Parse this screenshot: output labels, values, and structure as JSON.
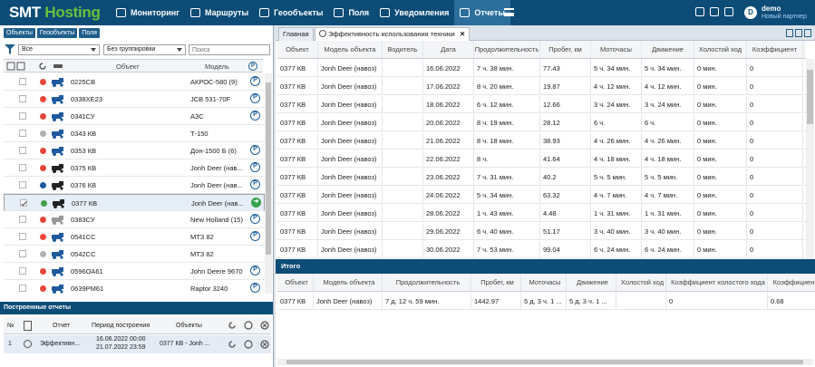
{
  "logo": {
    "part1": "SMT",
    "part2": "Hosting"
  },
  "nav": [
    {
      "label": "Мониторинг",
      "icon": "monitor-icon"
    },
    {
      "label": "Маршруты",
      "icon": "route-icon"
    },
    {
      "label": "Геообъекты",
      "icon": "geo-icon"
    },
    {
      "label": "Поля",
      "icon": "field-icon"
    },
    {
      "label": "Уведомления",
      "icon": "mail-icon"
    },
    {
      "label": "Отчеты",
      "icon": "reports-icon"
    }
  ],
  "user": {
    "initial": "D",
    "name": "demo",
    "role": "Новый партнер"
  },
  "left": {
    "subtabs": [
      "Объекты",
      "Геообъекты",
      "Поля"
    ],
    "filter_all": "Все",
    "grouping": "Без группировки",
    "search_placeholder": "Поиск",
    "col_object": "Объект",
    "col_model": "Модель",
    "rows": [
      {
        "name": "0225СВ",
        "model": "АКРОС-580 (9)",
        "status": "red",
        "icon": "harvester",
        "checked": false,
        "action": "P"
      },
      {
        "name": "0338ХЕ23",
        "model": "JCB 531-70F",
        "status": "red",
        "icon": "loader",
        "checked": false,
        "action": "P"
      },
      {
        "name": "0341СУ",
        "model": "АЗС",
        "status": "red",
        "icon": "fuel",
        "checked": false,
        "action": "P"
      },
      {
        "name": "0343 КВ",
        "model": "Т-150",
        "status": "gray",
        "icon": "tractor",
        "checked": false,
        "action": ""
      },
      {
        "name": "0353 КВ",
        "model": "Дон-1500 Б (6)",
        "status": "red",
        "icon": "harvester",
        "checked": false,
        "action": "P"
      },
      {
        "name": "0375 КВ",
        "model": "Jonh Deer (нав...",
        "status": "red",
        "icon": "car",
        "checked": false,
        "action": "P"
      },
      {
        "name": "0376 КВ",
        "model": "Jonh Deer (нав...",
        "status": "blue",
        "icon": "car",
        "checked": false,
        "action": "P"
      },
      {
        "name": "0377 КВ",
        "model": "Jonh Deer (нав...",
        "status": "green",
        "icon": "car",
        "checked": true,
        "action": "go",
        "selected": true
      },
      {
        "name": "0383СУ",
        "model": "New Holland (15)",
        "status": "red",
        "icon": "truck",
        "checked": false,
        "action": "P"
      },
      {
        "name": "0541СС",
        "model": "МТЗ 82",
        "status": "red",
        "icon": "tractor",
        "checked": false,
        "action": "P"
      },
      {
        "name": "0542СС",
        "model": "МТЗ 82",
        "status": "gray",
        "icon": "tractor",
        "checked": false,
        "action": ""
      },
      {
        "name": "0596ОА61",
        "model": "John Deere 9670",
        "status": "red",
        "icon": "harvester",
        "checked": false,
        "action": "P"
      },
      {
        "name": "0639РМ61",
        "model": "Raptor 3240",
        "status": "red",
        "icon": "harvester",
        "checked": false,
        "action": "P"
      }
    ],
    "reports_title": "Построенные отчеты",
    "rep_cols": {
      "num": "№",
      "report": "Отчет",
      "period": "Период построения",
      "objects": "Объекты"
    },
    "rep_row": {
      "num": "1",
      "report": "Эффективн...",
      "period_from": "16.06.2022 00:00",
      "period_to": "21.07.2022 23:59",
      "objects": "0377 КВ - Jonh ..."
    }
  },
  "right": {
    "tab_home": "Главная",
    "tab_report": "Эффективность использования техники",
    "columns": [
      "Объект",
      "Модель объекта",
      "Водитель",
      "Дата",
      "Продолжительность",
      "Пробег, км",
      "Моточасы",
      "Движение",
      "Холостой ход",
      "Коэффициент"
    ],
    "rows": [
      [
        "0377 КВ",
        "Jonh Deer (навоз)",
        "",
        "16.06.2022",
        "7 ч. 38 мин.",
        "77.43",
        "5 ч. 34 мин.",
        "5 ч. 34 мин.",
        "0 мин.",
        "0"
      ],
      [
        "0377 КВ",
        "Jonh Deer (навоз)",
        "",
        "17.06.2022",
        "8 ч. 20 мин.",
        "19.87",
        "4 ч. 12 мин.",
        "4 ч. 12 мин.",
        "0 мин.",
        "0"
      ],
      [
        "0377 КВ",
        "Jonh Deer (навоз)",
        "",
        "18.06.2022",
        "6 ч. 12 мин.",
        "12.66",
        "3 ч. 24 мин.",
        "3 ч. 24 мин.",
        "0 мин.",
        "0"
      ],
      [
        "0377 КВ",
        "Jonh Deer (навоз)",
        "",
        "20.06.2022",
        "8 ч. 19 мин.",
        "28.12",
        "6 ч.",
        "6 ч.",
        "0 мин.",
        "0"
      ],
      [
        "0377 КВ",
        "Jonh Deer (навоз)",
        "",
        "21.06.2022",
        "8 ч. 18 мин.",
        "38.93",
        "4 ч. 26 мин.",
        "4 ч. 26 мин.",
        "0 мин.",
        "0"
      ],
      [
        "0377 КВ",
        "Jonh Deer (навоз)",
        "",
        "22.06.2022",
        "8 ч.",
        "41.64",
        "4 ч. 18 мин.",
        "4 ч. 18 мин.",
        "0 мин.",
        "0"
      ],
      [
        "0377 КВ",
        "Jonh Deer (навоз)",
        "",
        "23.06.2022",
        "7 ч. 31 мин.",
        "40.2",
        "5 ч. 5 мин.",
        "5 ч. 5 мин.",
        "0 мин.",
        "0"
      ],
      [
        "0377 КВ",
        "Jonh Deer (навоз)",
        "",
        "24.06.2022",
        "5 ч. 34 мин.",
        "63.32",
        "4 ч. 7 мин.",
        "4 ч. 7 мин.",
        "0 мин.",
        "0"
      ],
      [
        "0377 КВ",
        "Jonh Deer (навоз)",
        "",
        "28.06.2022",
        "1 ч. 43 мин.",
        "4.48",
        "1 ч. 31 мин.",
        "1 ч. 31 мин.",
        "0 мин.",
        "0"
      ],
      [
        "0377 КВ",
        "Jonh Deer (навоз)",
        "",
        "29.06.2022",
        "6 ч. 40 мин.",
        "51.17",
        "3 ч. 40 мин.",
        "3 ч. 40 мин.",
        "0 мин.",
        "0"
      ],
      [
        "0377 КВ",
        "Jonh Deer (навоз)",
        "",
        "30.06.2022",
        "7 ч. 53 мин.",
        "99.04",
        "6 ч. 24 мин.",
        "6 ч. 24 мин.",
        "0 мин.",
        "0"
      ]
    ],
    "totals_title": "Итого",
    "tcolumns": [
      "Объект",
      "Модель объекта",
      "Продолжительность",
      "Пробег, км",
      "Моточасы",
      "Движение",
      "Холостой ход",
      "Коэффициент холостого хода",
      "Коэффициен"
    ],
    "trow": [
      "0377 КВ",
      "Jonh Deer (навоз)",
      "7 д. 12 ч. 59 мин.",
      "1442.97",
      "5 д. 3 ч. 1 ...",
      "5 д. 3 ч. 1 ...",
      "",
      "0",
      "0.68"
    ]
  }
}
